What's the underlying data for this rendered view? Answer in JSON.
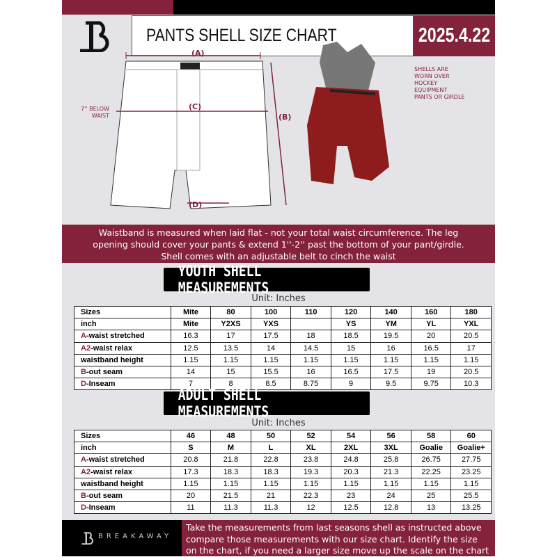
{
  "header": {
    "title": "PANTS SHELL SIZE CHART",
    "date": "2025.4.22"
  },
  "diagram": {
    "label_a": "(A)",
    "label_b": "(B)",
    "label_c": "(C)",
    "label_d": "(D)",
    "below_waist_note": "7'' BELOW WAIST",
    "shell_note": "SHELLS ARE WORN OVER HOCKEY EQUIPMENT PANTS OR GIRDLE"
  },
  "banner": {
    "line1": "Waistband is measured when laid flat - not your total waist circumference. The leg",
    "line2": "opening should cover your pants & extend 1''-2'' past the bottom of your pant/girdle.",
    "line3": "Shell comes with an adjustable belt to cinch the waist"
  },
  "youth": {
    "heading": "YOUTH SHELL MEASUREMENTS",
    "unit": "Unit: Inches",
    "rows": [
      {
        "key": "",
        "label": "Sizes",
        "values": [
          "Mite",
          "80",
          "100",
          "110",
          "120",
          "140",
          "160",
          "180"
        ]
      },
      {
        "key": "",
        "label": "inch",
        "values": [
          "Mite",
          "Y2XS",
          "YXS",
          "",
          "YS",
          "YM",
          "YL",
          "YXL"
        ]
      },
      {
        "key": "A",
        "label": "-waist stretched",
        "values": [
          "16.3",
          "17",
          "17.5",
          "18",
          "18.5",
          "19.5",
          "20",
          "20.5"
        ]
      },
      {
        "key": "A2",
        "label": "-waist relax",
        "values": [
          "12.5",
          "13.5",
          "14",
          "14.5",
          "15",
          "16",
          "16.5",
          "17"
        ]
      },
      {
        "key": "",
        "label": "waistband height",
        "values": [
          "1.15",
          "1.15",
          "1.15",
          "1.15",
          "1.15",
          "1.15",
          "1.15",
          "1.15"
        ]
      },
      {
        "key": "B",
        "label": "-out seam",
        "values": [
          "14",
          "15",
          "15.5",
          "16",
          "16.5",
          "17.5",
          "19",
          "20.5"
        ]
      },
      {
        "key": "D",
        "label": "-Inseam",
        "values": [
          "7",
          "8",
          "8.5",
          "8.75",
          "9",
          "9.5",
          "9.75",
          "10.3"
        ]
      }
    ]
  },
  "adult": {
    "heading": "ADULT SHELL MEASUREMENTS",
    "unit": "Unit: Inches",
    "rows": [
      {
        "key": "",
        "label": "Sizes",
        "values": [
          "46",
          "48",
          "50",
          "52",
          "54",
          "56",
          "58",
          "60"
        ]
      },
      {
        "key": "",
        "label": "inch",
        "values": [
          "S",
          "M",
          "L",
          "XL",
          "2XL",
          "3XL",
          "Goalie",
          "Goalie+"
        ]
      },
      {
        "key": "A",
        "label": "-waist stretched",
        "values": [
          "20.8",
          "21.8",
          "22.8",
          "23.8",
          "24.8",
          "25.8",
          "26.75",
          "27.75"
        ]
      },
      {
        "key": "A2",
        "label": "-waist relax",
        "values": [
          "17.3",
          "18.3",
          "18.3",
          "19.3",
          "20.3",
          "21.3",
          "22.25",
          "23.25"
        ]
      },
      {
        "key": "",
        "label": "waistband height",
        "values": [
          "1.15",
          "1.15",
          "1.15",
          "1.15",
          "1.15",
          "1.15",
          "1.15",
          "1.15"
        ]
      },
      {
        "key": "B",
        "label": "-out seam",
        "values": [
          "20",
          "21.5",
          "21",
          "22.3",
          "23",
          "24",
          "25",
          "25.5"
        ]
      },
      {
        "key": "D",
        "label": "-Inseam",
        "values": [
          "11",
          "11.3",
          "11.3",
          "12",
          "12.5",
          "12.8",
          "13",
          "13.25"
        ]
      }
    ]
  },
  "footer": {
    "brand": "BREAKAWAY",
    "line1": "Take the measurements from last seasons shell as instructed above",
    "line2": "compare those measurements  with our size chart. Identify the size",
    "line3": "on the chart, if you need a larger size move up the scale on the chart"
  },
  "colors": {
    "accent": "#84223c",
    "dark": "#000000",
    "background": "#e4e4e8"
  }
}
